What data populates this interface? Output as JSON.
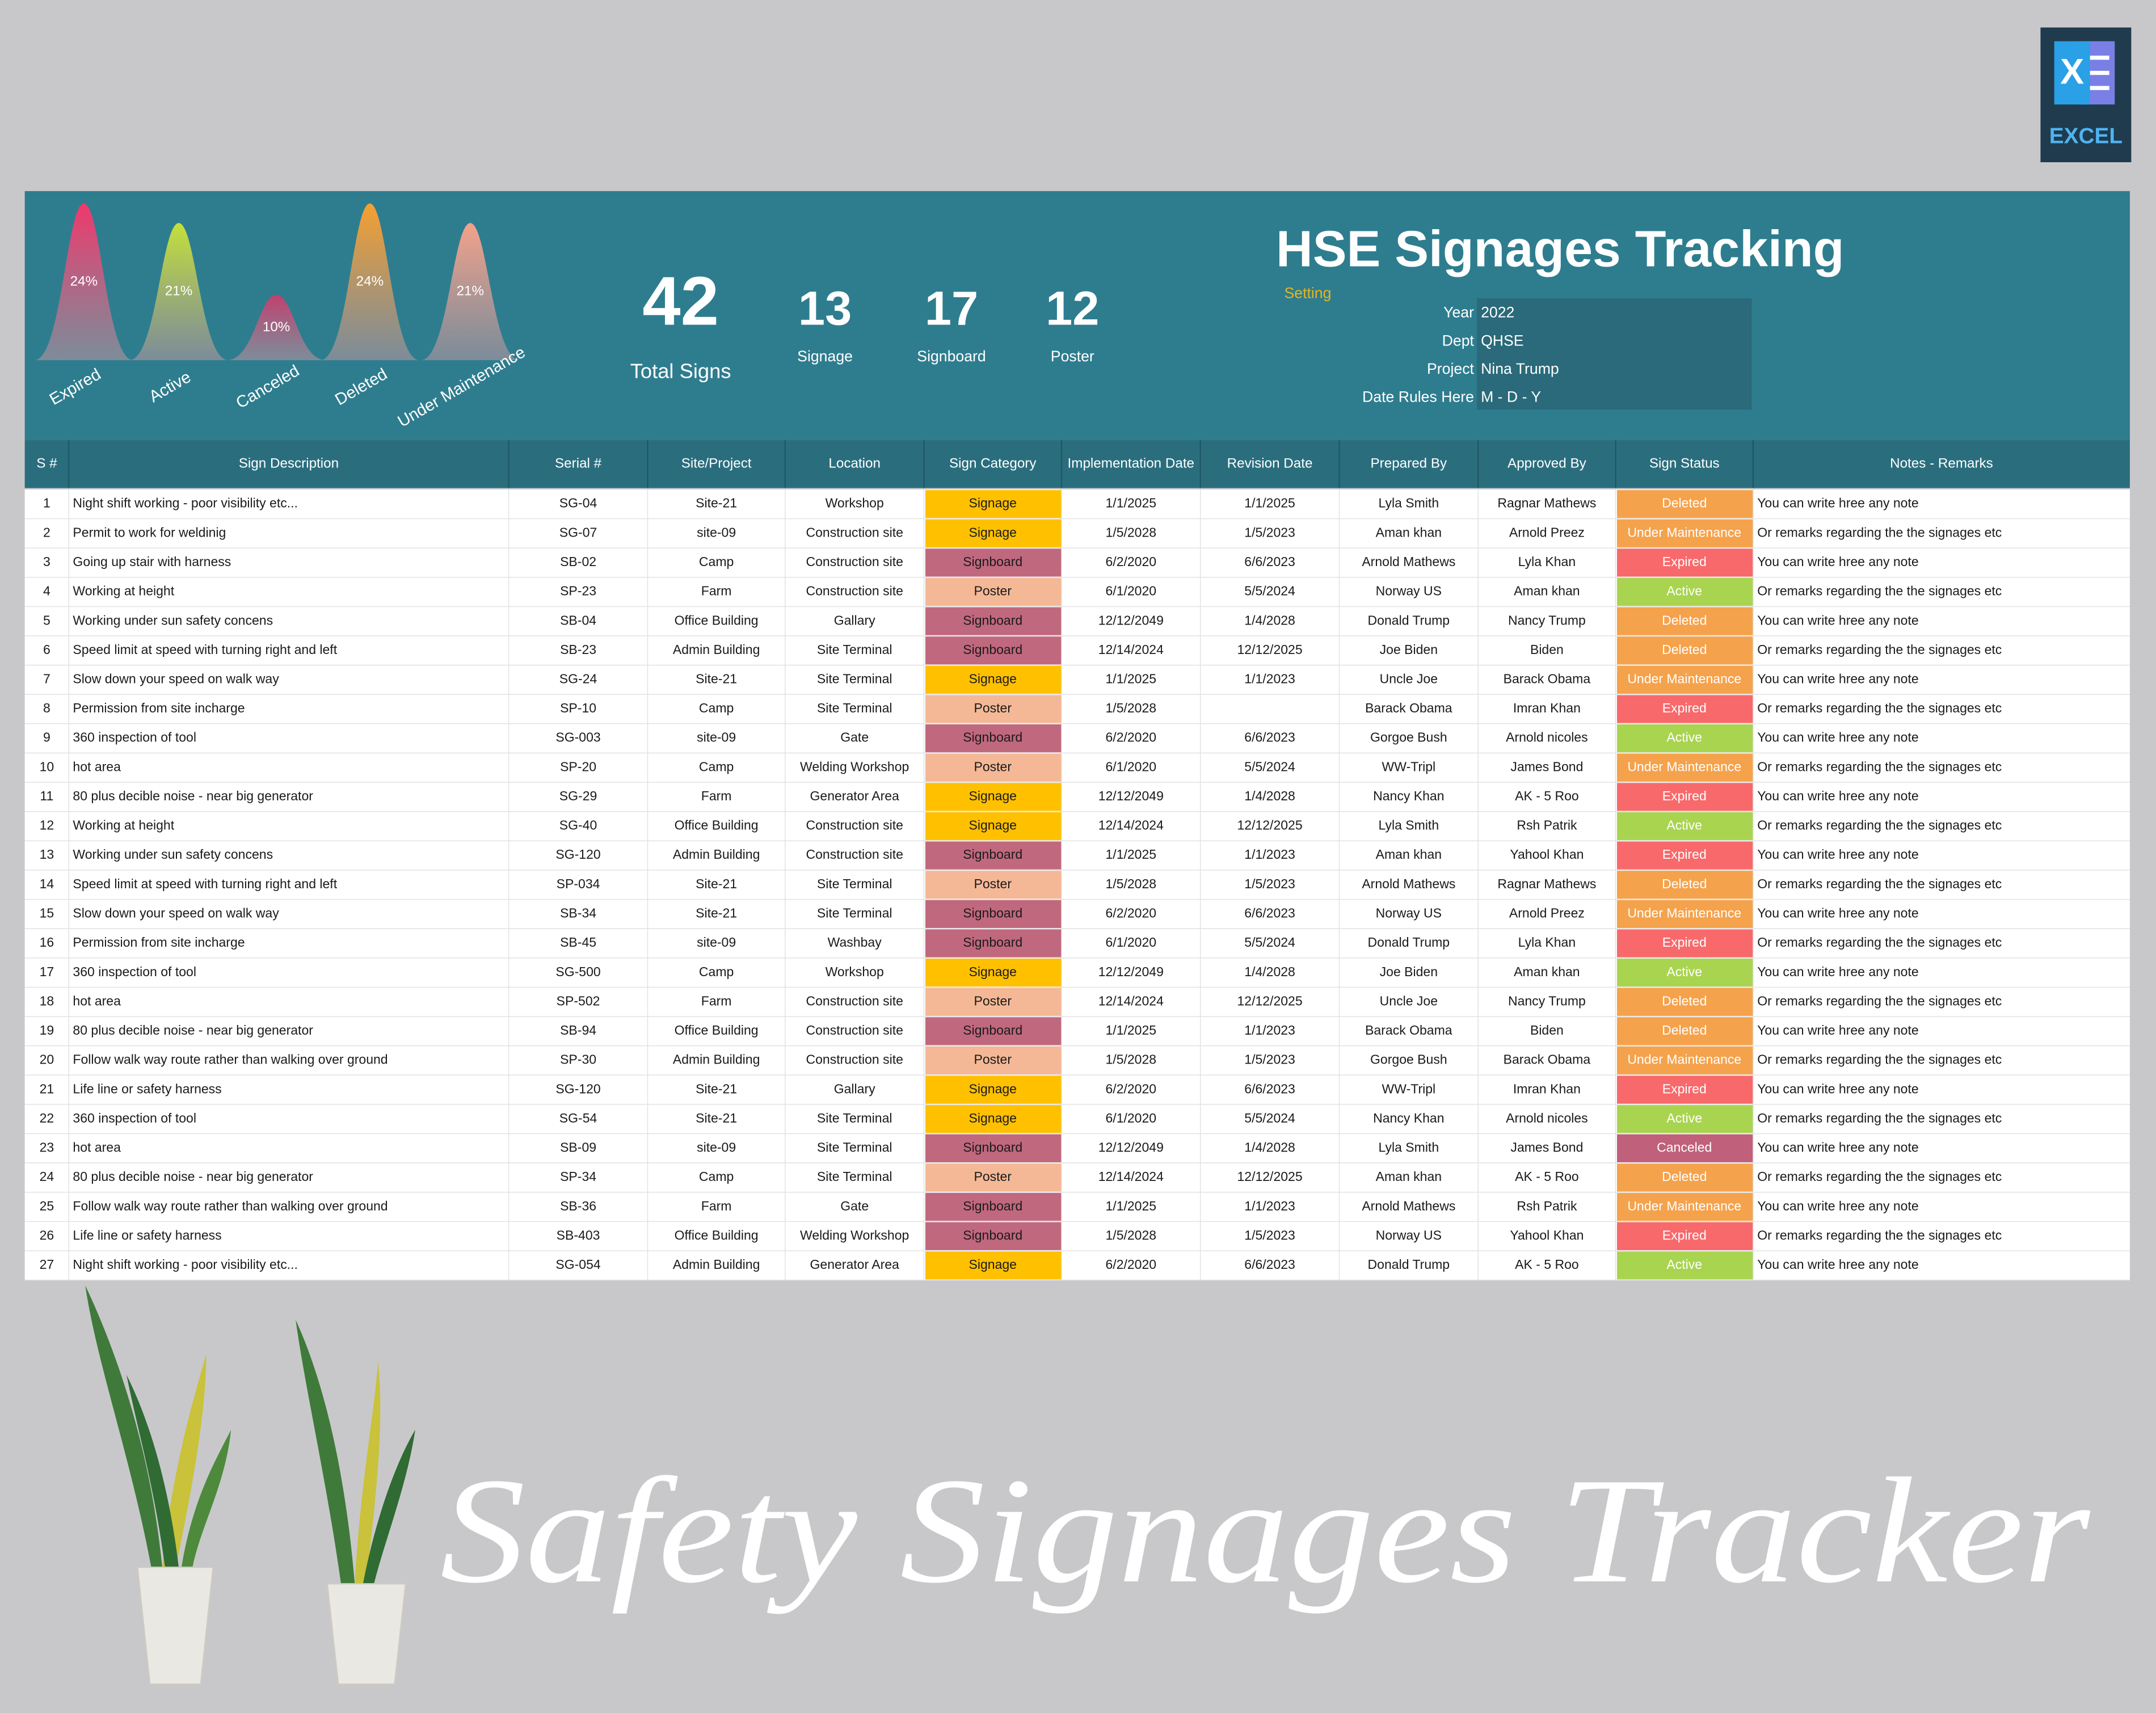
{
  "logo": {
    "letter": "X",
    "label": "EXCEL"
  },
  "status_chart": {
    "type": "area",
    "categories": [
      "Expired",
      "Active",
      "Canceled",
      "Deleted",
      "Under Maintenance"
    ],
    "values": [
      24,
      21,
      10,
      24,
      21
    ],
    "value_labels": [
      "24%",
      "21%",
      "10%",
      "24%",
      "21%"
    ],
    "colors": [
      "#f0386b",
      "#c5e03a",
      "#c2406e",
      "#f5a030",
      "#f4a28a"
    ]
  },
  "kpis": [
    {
      "value": 42,
      "label": "Total Signs"
    },
    {
      "value": 13,
      "label": "Signage"
    },
    {
      "value": 17,
      "label": "Signboard"
    },
    {
      "value": 12,
      "label": "Poster"
    }
  ],
  "header": {
    "title": "HSE Signages Tracking",
    "setting_label": "Setting"
  },
  "settings": [
    {
      "label": "Year",
      "value": "2022"
    },
    {
      "label": "Dept",
      "value": "QHSE"
    },
    {
      "label": "Project",
      "value": "Nina Trump"
    },
    {
      "label": "Date Rules Here",
      "value": "M - D - Y"
    }
  ],
  "category_colors": {
    "Signage": "#ffc000",
    "Signboard": "#c0687e",
    "Poster": "#f4b896"
  },
  "status_colors": {
    "Deleted": "#f5a24c",
    "Under Maintenance": "#f5a24c",
    "Expired": "#f8696b",
    "Active": "#a9d44f",
    "Canceled": "#c0607a"
  },
  "table": {
    "columns": [
      "S #",
      "Sign Description",
      "Serial #",
      "Site/Project",
      "Location",
      "Sign Category",
      "Implementation Date",
      "Revision Date",
      "Prepared By",
      "Approved By",
      "Sign  Status",
      "Notes - Remarks"
    ],
    "rows": [
      [
        1,
        "Night shift working - poor visibility etc...",
        "SG-04",
        "Site-21",
        "Workshop",
        "Signage",
        "1/1/2025",
        "1/1/2025",
        "Lyla Smith",
        "Ragnar Mathews",
        "Deleted",
        "You can write hree any note"
      ],
      [
        2,
        "Permit to work for weldinig",
        "SG-07",
        "site-09",
        "Construction site",
        "Signage",
        "1/5/2028",
        "1/5/2023",
        "Aman khan",
        "Arnold Preez",
        "Under Maintenance",
        "Or remarks regarding the the signages etc"
      ],
      [
        3,
        "Going up stair with harness",
        "SB-02",
        "Camp",
        "Construction site",
        "Signboard",
        "6/2/2020",
        "6/6/2023",
        "Arnold Mathews",
        "Lyla Khan",
        "Expired",
        "You can write hree any note"
      ],
      [
        4,
        "Working at height",
        "SP-23",
        "Farm",
        "Construction site",
        "Poster",
        "6/1/2020",
        "5/5/2024",
        "Norway US",
        "Aman khan",
        "Active",
        "Or remarks regarding the the signages etc"
      ],
      [
        5,
        "Working under sun safety concens",
        "SB-04",
        "Office Building",
        "Gallary",
        "Signboard",
        "12/12/2049",
        "1/4/2028",
        "Donald Trump",
        "Nancy Trump",
        "Deleted",
        "You can write hree any note"
      ],
      [
        6,
        "Speed limit at speed with turning right and left",
        "SB-23",
        "Admin Building",
        "Site Terminal",
        "Signboard",
        "12/14/2024",
        "12/12/2025",
        "Joe Biden",
        "Biden",
        "Deleted",
        "Or remarks regarding the the signages etc"
      ],
      [
        7,
        "Slow down your speed on walk way",
        "SG-24",
        "Site-21",
        "Site Terminal",
        "Signage",
        "1/1/2025",
        "1/1/2023",
        "Uncle Joe",
        "Barack Obama",
        "Under Maintenance",
        "You can write hree any note"
      ],
      [
        8,
        "Permission from site incharge",
        "SP-10",
        "Camp",
        "Site Terminal",
        "Poster",
        "1/5/2028",
        null,
        "Barack Obama",
        "Imran Khan",
        "Expired",
        "Or remarks regarding the the signages etc"
      ],
      [
        9,
        "360 inspection of tool",
        "SG-003",
        "site-09",
        "Gate",
        "Signboard",
        "6/2/2020",
        "6/6/2023",
        "Gorgoe Bush",
        "Arnold nicoles",
        "Active",
        "You can write hree any note"
      ],
      [
        10,
        "hot area",
        "SP-20",
        "Camp",
        "Welding Workshop",
        "Poster",
        "6/1/2020",
        "5/5/2024",
        "WW-Tripl",
        "James Bond",
        "Under Maintenance",
        "Or remarks regarding the the signages etc"
      ],
      [
        11,
        "80 plus decible noise - near big generator",
        "SG-29",
        "Farm",
        "Generator Area",
        "Signage",
        "12/12/2049",
        "1/4/2028",
        "Nancy Khan",
        "AK - 5 Roo",
        "Expired",
        "You can write hree any note"
      ],
      [
        12,
        "Working at height",
        "SG-40",
        "Office Building",
        "Construction site",
        "Signage",
        "12/14/2024",
        "12/12/2025",
        "Lyla Smith",
        "Rsh Patrik",
        "Active",
        "Or remarks regarding the the signages etc"
      ],
      [
        13,
        "Working under sun safety concens",
        "SG-120",
        "Admin Building",
        "Construction site",
        "Signboard",
        "1/1/2025",
        "1/1/2023",
        "Aman khan",
        "Yahool Khan",
        "Expired",
        "You can write hree any note"
      ],
      [
        14,
        "Speed limit at speed with turning right and left",
        "SP-034",
        "Site-21",
        "Site Terminal",
        "Poster",
        "1/5/2028",
        "1/5/2023",
        "Arnold Mathews",
        "Ragnar Mathews",
        "Deleted",
        "Or remarks regarding the the signages etc"
      ],
      [
        15,
        "Slow down your speed on walk way",
        "SB-34",
        "Site-21",
        "Site Terminal",
        "Signboard",
        "6/2/2020",
        "6/6/2023",
        "Norway US",
        "Arnold Preez",
        "Under Maintenance",
        "You can write hree any note"
      ],
      [
        16,
        "Permission from site incharge",
        "SB-45",
        "site-09",
        "Washbay",
        "Signboard",
        "6/1/2020",
        "5/5/2024",
        "Donald Trump",
        "Lyla Khan",
        "Expired",
        "Or remarks regarding the the signages etc"
      ],
      [
        17,
        "360 inspection of tool",
        "SG-500",
        "Camp",
        "Workshop",
        "Signage",
        "12/12/2049",
        "1/4/2028",
        "Joe Biden",
        "Aman khan",
        "Active",
        "You can write hree any note"
      ],
      [
        18,
        "hot area",
        "SP-502",
        "Farm",
        "Construction site",
        "Poster",
        "12/14/2024",
        "12/12/2025",
        "Uncle Joe",
        "Nancy Trump",
        "Deleted",
        "Or remarks regarding the the signages etc"
      ],
      [
        19,
        "80 plus decible noise - near big generator",
        "SB-94",
        "Office Building",
        "Construction site",
        "Signboard",
        "1/1/2025",
        "1/1/2023",
        "Barack Obama",
        "Biden",
        "Deleted",
        "You can write hree any note"
      ],
      [
        20,
        "Follow walk way route rather than walking over ground",
        "SP-30",
        "Admin Building",
        "Construction site",
        "Poster",
        "1/5/2028",
        "1/5/2023",
        "Gorgoe Bush",
        "Barack Obama",
        "Under Maintenance",
        "Or remarks regarding the the signages etc"
      ],
      [
        21,
        "Life line or safety harness",
        "SG-120",
        "Site-21",
        "Gallary",
        "Signage",
        "6/2/2020",
        "6/6/2023",
        "WW-Tripl",
        "Imran Khan",
        "Expired",
        "You can write hree any note"
      ],
      [
        22,
        "360 inspection of tool",
        "SG-54",
        "Site-21",
        "Site Terminal",
        "Signage",
        "6/1/2020",
        "5/5/2024",
        "Nancy Khan",
        "Arnold nicoles",
        "Active",
        "Or remarks regarding the the signages etc"
      ],
      [
        23,
        "hot area",
        "SB-09",
        "site-09",
        "Site Terminal",
        "Signboard",
        "12/12/2049",
        "1/4/2028",
        "Lyla Smith",
        "James Bond",
        "Canceled",
        "You can write hree any note"
      ],
      [
        24,
        "80 plus decible noise - near big generator",
        "SP-34",
        "Camp",
        "Site Terminal",
        "Poster",
        "12/14/2024",
        "12/12/2025",
        "Aman khan",
        "AK - 5 Roo",
        "Deleted",
        "Or remarks regarding the the signages etc"
      ],
      [
        25,
        "Follow walk way route rather than walking over ground",
        "SB-36",
        "Farm",
        "Gate",
        "Signboard",
        "1/1/2025",
        "1/1/2023",
        "Arnold Mathews",
        "Rsh Patrik",
        "Under Maintenance",
        "You can write hree any note"
      ],
      [
        26,
        "Life line or safety harness",
        "SB-403",
        "Office Building",
        "Welding Workshop",
        "Signboard",
        "1/5/2028",
        "1/5/2023",
        "Norway US",
        "Yahool Khan",
        "Expired",
        "Or remarks regarding the the signages etc"
      ],
      [
        27,
        "Night shift working - poor visibility etc...",
        "SG-054",
        "Admin Building",
        "Generator Area",
        "Signage",
        "6/2/2020",
        "6/6/2023",
        "Donald Trump",
        "AK - 5 Roo",
        "Active",
        "You can write hree any note"
      ]
    ]
  },
  "tagline": "Safety Signages Tracker"
}
